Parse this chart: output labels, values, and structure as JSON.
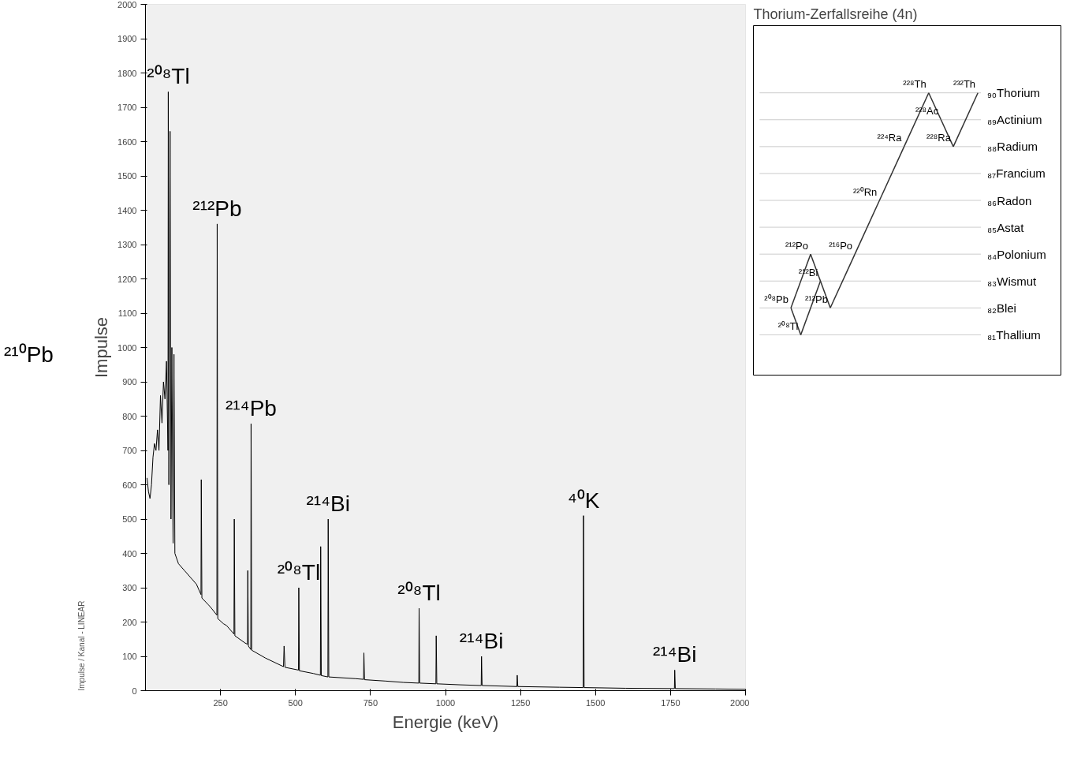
{
  "chart_data": [
    {
      "type": "line",
      "xlabel": "Energie (keV)",
      "ylabel": "Impulse",
      "xlim": [
        0,
        2000
      ],
      "ylim": [
        0,
        2000
      ],
      "xticks": [
        250,
        500,
        750,
        1000,
        1250,
        1500,
        1750,
        2000
      ],
      "yticks": [
        0,
        100,
        200,
        300,
        400,
        500,
        600,
        700,
        800,
        900,
        1000,
        1100,
        1200,
        1300,
        1400,
        1500,
        1600,
        1700,
        1800,
        1900,
        2000
      ],
      "grid": false,
      "marker": "none",
      "line_style": "solid",
      "x": [
        5,
        10,
        15,
        20,
        25,
        30,
        35,
        40,
        45,
        50,
        55,
        60,
        65,
        70,
        75,
        76,
        78,
        82,
        85,
        88,
        92,
        95,
        98,
        110,
        130,
        150,
        170,
        185,
        186,
        188,
        210,
        220,
        238,
        239,
        241,
        260,
        270,
        295,
        296,
        298,
        330,
        340,
        341,
        343,
        351,
        352,
        354,
        400,
        460,
        462,
        465,
        510,
        511,
        513,
        560,
        583,
        584,
        586,
        608,
        609,
        611,
        700,
        727,
        728,
        730,
        800,
        860,
        911,
        912,
        914,
        968,
        969,
        971,
        1050,
        1119,
        1120,
        1122,
        1238,
        1239,
        1241,
        1380,
        1459,
        1460,
        1462,
        1600,
        1763,
        1764,
        1766,
        1900,
        2000
      ],
      "series": [
        {
          "color": "#000000",
          "values": [
            620,
            580,
            560,
            600,
            680,
            720,
            700,
            760,
            700,
            860,
            780,
            900,
            850,
            960,
            700,
            1745,
            600,
            1630,
            500,
            1000,
            430,
            980,
            400,
            370,
            350,
            330,
            310,
            280,
            615,
            270,
            250,
            240,
            220,
            1360,
            210,
            195,
            190,
            165,
            500,
            160,
            140,
            135,
            350,
            130,
            120,
            778,
            118,
            95,
            70,
            130,
            68,
            60,
            300,
            58,
            50,
            45,
            420,
            44,
            40,
            500,
            40,
            35,
            33,
            110,
            32,
            28,
            24,
            22,
            240,
            22,
            20,
            160,
            20,
            17,
            15,
            100,
            15,
            12,
            45,
            12,
            10,
            9,
            510,
            9,
            7,
            6,
            60,
            6,
            5,
            4
          ]
        }
      ],
      "annotations": [
        "²¹⁰Pb",
        {
          "text": "²⁰⁸Tl",
          "x": 76,
          "y": 1745
        },
        {
          "text": "²¹²Pb",
          "x": 239,
          "y": 1360
        },
        {
          "text": "²¹⁴Pb",
          "x": 352,
          "y": 778
        },
        {
          "text": "²¹⁴Bi",
          "x": 609,
          "y": 500
        },
        {
          "text": "²⁰⁸Tl",
          "x": 511,
          "y": 300
        },
        {
          "text": "²⁰⁸Tl",
          "x": 912,
          "y": 240
        },
        {
          "text": "²¹⁴Bi",
          "x": 1120,
          "y": 100
        },
        {
          "text": "⁴⁰K",
          "x": 1460,
          "y": 510
        },
        {
          "text": "²¹⁴Bi",
          "x": 1764,
          "y": 60
        },
        "Impulse / Kanal - LINEAR"
      ]
    },
    {
      "type": "other",
      "title": "Thorium-Zerfallsreihe    (4n)",
      "annotations": [
        "₉₀Thorium",
        "₈₉Actinium",
        "₈₈Radium",
        "₈₇Francium",
        "₈₆Radon",
        "₈₅Astat",
        "₈₄Polonium",
        "₈₃Wismut",
        "₈₂Blei",
        "₈₁Thallium",
        "²³²Th",
        "²²⁸Ra",
        "²²⁸Ac",
        "²²⁸Th",
        "²²⁴Ra",
        "²²⁰Rn",
        "²¹⁶Po",
        "²¹²Pb",
        "²¹²Bi",
        "²¹²Po",
        "²⁰⁸Tl",
        "²⁰⁸Pb"
      ]
    }
  ]
}
